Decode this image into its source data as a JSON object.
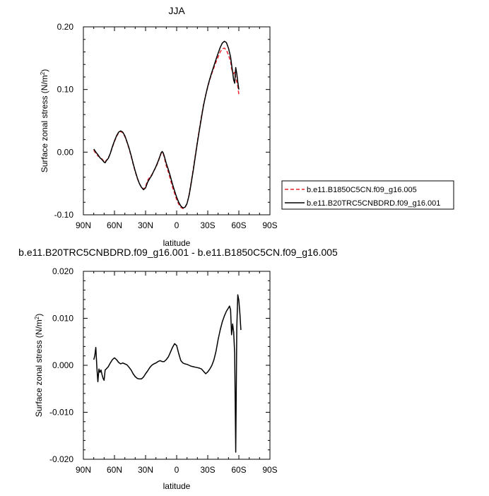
{
  "chart_data": [
    {
      "type": "line",
      "title": "JJA",
      "xlabel": "latitude",
      "ylabel": "Surface zonal stress (N/m",
      "ylabel_sup": "2",
      "ylabel_close": ")",
      "xlim": [
        90,
        -90
      ],
      "ylim": [
        -0.1,
        0.2
      ],
      "x_ticks": [
        90,
        60,
        30,
        0,
        -30,
        -60,
        -90
      ],
      "x_tick_labels": [
        "90N",
        "60N",
        "30N",
        "0",
        "30S",
        "60S",
        "90S"
      ],
      "y_ticks": [
        -0.1,
        0.0,
        0.1,
        0.2
      ],
      "y_tick_labels": [
        "-0.10",
        "0.00",
        "0.10",
        "0.20"
      ],
      "grid": false,
      "legend_position": "right",
      "series": [
        {
          "name": "b.e11.B1850C5CN.f09_g16.005",
          "color": "#e8262c",
          "dash": true,
          "points": [
            [
              80,
              0.003
            ],
            [
              78,
              -0.002
            ],
            [
              76,
              -0.006
            ],
            [
              74,
              -0.008
            ],
            [
              72,
              -0.011
            ],
            [
              70,
              -0.015
            ],
            [
              69,
              -0.016
            ],
            [
              68,
              -0.013
            ],
            [
              66,
              -0.01
            ],
            [
              64,
              -0.002
            ],
            [
              62,
              0.008
            ],
            [
              60,
              0.017
            ],
            [
              58,
              0.025
            ],
            [
              56,
              0.031
            ],
            [
              54,
              0.033
            ],
            [
              52,
              0.031
            ],
            [
              50,
              0.025
            ],
            [
              48,
              0.016
            ],
            [
              46,
              0.006
            ],
            [
              44,
              -0.006
            ],
            [
              42,
              -0.019
            ],
            [
              40,
              -0.031
            ],
            [
              38,
              -0.042
            ],
            [
              36,
              -0.05
            ],
            [
              34,
              -0.056
            ],
            [
              32,
              -0.059
            ],
            [
              30,
              -0.055
            ],
            [
              28,
              -0.045
            ],
            [
              26,
              -0.04
            ],
            [
              24,
              -0.036
            ],
            [
              22,
              -0.03
            ],
            [
              20,
              -0.024
            ],
            [
              18,
              -0.016
            ],
            [
              16,
              -0.007
            ],
            [
              15,
              -0.002
            ],
            [
              14,
              0.0
            ],
            [
              13,
              -0.002
            ],
            [
              12,
              -0.008
            ],
            [
              10,
              -0.022
            ],
            [
              8,
              -0.032
            ],
            [
              6,
              -0.044
            ],
            [
              4,
              -0.056
            ],
            [
              2,
              -0.066
            ],
            [
              0,
              -0.076
            ],
            [
              -2,
              -0.083
            ],
            [
              -4,
              -0.088
            ],
            [
              -6,
              -0.09
            ],
            [
              -8,
              -0.089
            ],
            [
              -10,
              -0.082
            ],
            [
              -12,
              -0.068
            ],
            [
              -14,
              -0.048
            ],
            [
              -16,
              -0.027
            ],
            [
              -18,
              -0.005
            ],
            [
              -20,
              0.017
            ],
            [
              -22,
              0.038
            ],
            [
              -24,
              0.058
            ],
            [
              -26,
              0.076
            ],
            [
              -28,
              0.091
            ],
            [
              -30,
              0.104
            ],
            [
              -32,
              0.116
            ],
            [
              -34,
              0.126
            ],
            [
              -36,
              0.135
            ],
            [
              -38,
              0.144
            ],
            [
              -40,
              0.152
            ],
            [
              -42,
              0.16
            ],
            [
              -44,
              0.165
            ],
            [
              -46,
              0.166
            ],
            [
              -48,
              0.163
            ],
            [
              -50,
              0.155
            ],
            [
              -52,
              0.145
            ],
            [
              -53,
              0.133
            ],
            [
              -54,
              0.128
            ],
            [
              -55,
              0.125
            ],
            [
              -56,
              0.128
            ],
            [
              -57,
              0.119
            ],
            [
              -58,
              0.112
            ],
            [
              -59,
              0.105
            ],
            [
              -60,
              0.092
            ]
          ]
        },
        {
          "name": "b.e11.B20TRC5CNBDRD.f09_g16.001",
          "color": "#000000",
          "dash": false,
          "points": [
            [
              80,
              0.005
            ],
            [
              78,
              0.0
            ],
            [
              76,
              -0.004
            ],
            [
              74,
              -0.009
            ],
            [
              72,
              -0.012
            ],
            [
              70,
              -0.016
            ],
            [
              69,
              -0.017
            ],
            [
              68,
              -0.014
            ],
            [
              66,
              -0.01
            ],
            [
              64,
              -0.002
            ],
            [
              62,
              0.009
            ],
            [
              60,
              0.018
            ],
            [
              58,
              0.026
            ],
            [
              56,
              0.032
            ],
            [
              54,
              0.034
            ],
            [
              52,
              0.032
            ],
            [
              50,
              0.026
            ],
            [
              48,
              0.017
            ],
            [
              46,
              0.007
            ],
            [
              44,
              -0.005
            ],
            [
              42,
              -0.018
            ],
            [
              40,
              -0.03
            ],
            [
              38,
              -0.041
            ],
            [
              36,
              -0.05
            ],
            [
              34,
              -0.056
            ],
            [
              32,
              -0.06
            ],
            [
              30,
              -0.057
            ],
            [
              28,
              -0.048
            ],
            [
              26,
              -0.042
            ],
            [
              24,
              -0.037
            ],
            [
              22,
              -0.03
            ],
            [
              20,
              -0.023
            ],
            [
              18,
              -0.015
            ],
            [
              16,
              -0.006
            ],
            [
              15,
              -0.001
            ],
            [
              14,
              0.001
            ],
            [
              13,
              -0.001
            ],
            [
              12,
              -0.006
            ],
            [
              10,
              -0.018
            ],
            [
              8,
              -0.028
            ],
            [
              6,
              -0.039
            ],
            [
              4,
              -0.051
            ],
            [
              2,
              -0.062
            ],
            [
              0,
              -0.072
            ],
            [
              -2,
              -0.08
            ],
            [
              -4,
              -0.086
            ],
            [
              -6,
              -0.089
            ],
            [
              -8,
              -0.088
            ],
            [
              -10,
              -0.082
            ],
            [
              -12,
              -0.069
            ],
            [
              -14,
              -0.05
            ],
            [
              -16,
              -0.029
            ],
            [
              -18,
              -0.007
            ],
            [
              -20,
              0.015
            ],
            [
              -22,
              0.036
            ],
            [
              -24,
              0.056
            ],
            [
              -26,
              0.075
            ],
            [
              -28,
              0.091
            ],
            [
              -30,
              0.105
            ],
            [
              -32,
              0.117
            ],
            [
              -34,
              0.128
            ],
            [
              -36,
              0.138
            ],
            [
              -38,
              0.148
            ],
            [
              -40,
              0.158
            ],
            [
              -42,
              0.167
            ],
            [
              -44,
              0.174
            ],
            [
              -46,
              0.177
            ],
            [
              -48,
              0.175
            ],
            [
              -50,
              0.166
            ],
            [
              -52,
              0.152
            ],
            [
              -53,
              0.14
            ],
            [
              -54,
              0.128
            ],
            [
              -55,
              0.115
            ],
            [
              -56,
              0.11
            ],
            [
              -57,
              0.135
            ],
            [
              -58,
              0.125
            ],
            [
              -59,
              0.112
            ],
            [
              -60,
              0.1
            ]
          ]
        }
      ]
    },
    {
      "type": "line",
      "title": "b.e11.B20TRC5CNBDRD.f09_g16.001 - b.e11.B1850C5CN.f09_g16.005",
      "xlabel": "latitude",
      "ylabel": "Surface zonal stress (N/m",
      "ylabel_sup": "2",
      "ylabel_close": ")",
      "xlim": [
        90,
        -90
      ],
      "ylim": [
        -0.02,
        0.02
      ],
      "x_ticks": [
        90,
        60,
        30,
        0,
        -30,
        -60,
        -90
      ],
      "x_tick_labels": [
        "90N",
        "60N",
        "30N",
        "0",
        "30S",
        "60S",
        "90S"
      ],
      "y_ticks": [
        -0.02,
        -0.01,
        0.0,
        0.01,
        0.02
      ],
      "y_tick_labels": [
        "-0.020",
        "-0.010",
        "0.000",
        "0.010",
        "0.020"
      ],
      "grid": false,
      "series": [
        {
          "color": "#000000",
          "dash": false,
          "points": [
            [
              80,
              0.0012
            ],
            [
              79,
              0.002
            ],
            [
              78,
              0.0038
            ],
            [
              77,
              -0.0005
            ],
            [
              76,
              -0.0035
            ],
            [
              75,
              -0.0008
            ],
            [
              74,
              -0.0015
            ],
            [
              73,
              -0.001
            ],
            [
              72,
              -0.002
            ],
            [
              71,
              -0.0028
            ],
            [
              70,
              -0.0032
            ],
            [
              69,
              -0.001
            ],
            [
              68,
              -0.0008
            ],
            [
              66,
              -0.0003
            ],
            [
              64,
              0.0005
            ],
            [
              62,
              0.0012
            ],
            [
              60,
              0.0016
            ],
            [
              58,
              0.0012
            ],
            [
              56,
              0.0006
            ],
            [
              54,
              0.0003
            ],
            [
              52,
              0.0005
            ],
            [
              50,
              0.0003
            ],
            [
              48,
              0.0001
            ],
            [
              46,
              -0.0004
            ],
            [
              44,
              -0.001
            ],
            [
              42,
              -0.0018
            ],
            [
              40,
              -0.0024
            ],
            [
              38,
              -0.0028
            ],
            [
              36,
              -0.0029
            ],
            [
              34,
              -0.0029
            ],
            [
              32,
              -0.0025
            ],
            [
              30,
              -0.0018
            ],
            [
              28,
              -0.0012
            ],
            [
              26,
              -0.0005
            ],
            [
              24,
              0.0
            ],
            [
              22,
              0.0003
            ],
            [
              20,
              0.0005
            ],
            [
              18,
              0.0008
            ],
            [
              16,
              0.001
            ],
            [
              14,
              0.0008
            ],
            [
              12,
              0.0008
            ],
            [
              10,
              0.0012
            ],
            [
              8,
              0.0018
            ],
            [
              6,
              0.0028
            ],
            [
              4,
              0.0038
            ],
            [
              2,
              0.0046
            ],
            [
              0,
              0.0042
            ],
            [
              -2,
              0.0025
            ],
            [
              -4,
              0.001
            ],
            [
              -6,
              0.0005
            ],
            [
              -8,
              0.0003
            ],
            [
              -10,
              0.0002
            ],
            [
              -12,
              0.0
            ],
            [
              -14,
              -0.0002
            ],
            [
              -16,
              -0.0003
            ],
            [
              -18,
              -0.0004
            ],
            [
              -20,
              -0.0005
            ],
            [
              -22,
              -0.0006
            ],
            [
              -24,
              -0.0008
            ],
            [
              -26,
              -0.0013
            ],
            [
              -28,
              -0.0018
            ],
            [
              -30,
              -0.0014
            ],
            [
              -32,
              -0.0008
            ],
            [
              -34,
              0.0
            ],
            [
              -36,
              0.0012
            ],
            [
              -38,
              0.003
            ],
            [
              -40,
              0.0055
            ],
            [
              -42,
              0.0075
            ],
            [
              -44,
              0.0092
            ],
            [
              -46,
              0.0105
            ],
            [
              -48,
              0.0115
            ],
            [
              -50,
              0.0122
            ],
            [
              -51,
              0.0126
            ],
            [
              -52,
              0.0118
            ],
            [
              -53,
              0.0065
            ],
            [
              -54,
              0.0088
            ],
            [
              -55,
              0.007
            ],
            [
              -56,
              0.0025
            ],
            [
              -57,
              -0.0185
            ],
            [
              -58,
              0.008
            ],
            [
              -59,
              0.015
            ],
            [
              -60,
              0.0138
            ],
            [
              -61,
              0.011
            ],
            [
              -62,
              0.0075
            ]
          ]
        }
      ]
    }
  ],
  "legend_items": [
    {
      "label": "b.e11.B1850C5CN.f09_g16.005",
      "color": "#e8262c",
      "dash": true
    },
    {
      "label": "b.e11.B20TRC5CNBDRD.f09_g16.001",
      "color": "#000000",
      "dash": false
    }
  ]
}
